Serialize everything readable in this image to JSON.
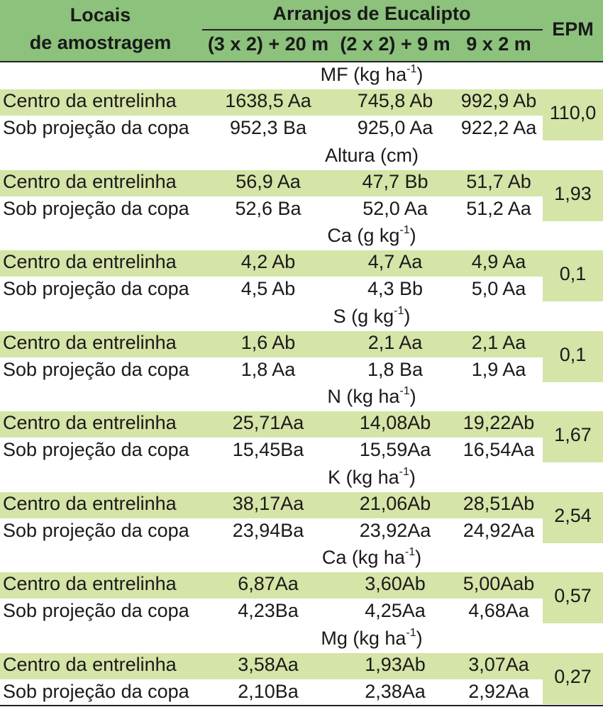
{
  "header": {
    "locais_line1": "Locais",
    "locais_line2": "de amostragem",
    "arranjos": "Arranjos de Eucalipto",
    "col1": "(3 x 2) + 20 m",
    "col2": "(2 x 2) + 9 m",
    "col3": "9 x 2 m",
    "epm": "EPM"
  },
  "sections": [
    {
      "label": "MF (kg ha",
      "unit_sup": "-1",
      "label_end": ")",
      "epm": "110,0",
      "rows": [
        {
          "local": "Centro da entrelinha",
          "v1": "1638,5 Aa",
          "v2": "745,8 Ab",
          "v3": "992,9 Ab"
        },
        {
          "local": "Sob projeção da copa",
          "v1": "952,3 Ba",
          "v2": "925,0 Aa",
          "v3": "922,2 Aa"
        }
      ]
    },
    {
      "label": "Altura (cm)",
      "unit_sup": "",
      "label_end": "",
      "epm": "1,93",
      "rows": [
        {
          "local": "Centro da entrelinha",
          "v1": "56,9 Aa",
          "v2": "47,7 Bb",
          "v3": "51,7 Ab"
        },
        {
          "local": "Sob projeção da copa",
          "v1": "52,6 Ba",
          "v2": "52,0 Aa",
          "v3": "51,2 Aa"
        }
      ]
    },
    {
      "label": "Ca (g kg",
      "unit_sup": "-1",
      "label_end": ")",
      "epm": "0,1",
      "rows": [
        {
          "local": "Centro da entrelinha",
          "v1": "4,2 Ab",
          "v2": "4,7 Aa",
          "v3": "4,9 Aa"
        },
        {
          "local": "Sob projeção da copa",
          "v1": "4,5 Ab",
          "v2": "4,3 Bb",
          "v3": "5,0 Aa"
        }
      ]
    },
    {
      "label": "S (g kg",
      "unit_sup": "-1",
      "label_end": ")",
      "epm": "0,1",
      "rows": [
        {
          "local": "Centro da entrelinha",
          "v1": "1,6 Ab",
          "v2": "2,1 Aa",
          "v3": "2,1 Aa"
        },
        {
          "local": "Sob projeção da copa",
          "v1": "1,8 Aa",
          "v2": "1,8 Ba",
          "v3": "1,9 Aa"
        }
      ]
    },
    {
      "label": "N (kg ha",
      "unit_sup": "-1",
      "label_end": ")",
      "epm": "1,67",
      "rows": [
        {
          "local": "Centro da entrelinha",
          "v1": "25,71Aa",
          "v2": "14,08Ab",
          "v3": "19,22Ab"
        },
        {
          "local": "Sob projeção da copa",
          "v1": "15,45Ba",
          "v2": "15,59Aa",
          "v3": "16,54Aa"
        }
      ]
    },
    {
      "label": "K (kg ha",
      "unit_sup": "-1",
      "label_end": ")",
      "epm": "2,54",
      "rows": [
        {
          "local": "Centro da entrelinha",
          "v1": "38,17Aa",
          "v2": "21,06Ab",
          "v3": "28,51Ab"
        },
        {
          "local": "Sob projeção da copa",
          "v1": "23,94Ba",
          "v2": "23,92Aa",
          "v3": "24,92Aa"
        }
      ]
    },
    {
      "label": "Ca (kg ha",
      "unit_sup": "-1",
      "label_end": ")",
      "epm": "0,57",
      "rows": [
        {
          "local": "Centro da entrelinha",
          "v1": "6,87Aa",
          "v2": "3,60Ab",
          "v3": "5,00Aab"
        },
        {
          "local": "Sob projeção da copa",
          "v1": "4,23Ba",
          "v2": "4,25Aa",
          "v3": "4,68Aa"
        }
      ]
    },
    {
      "label": "Mg (kg ha",
      "unit_sup": "-1",
      "label_end": ")",
      "epm": "0,27",
      "rows": [
        {
          "local": "Centro da entrelinha",
          "v1": "3,58Aa",
          "v2": "1,93Ab",
          "v3": "3,07Aa"
        },
        {
          "local": "Sob projeção da copa",
          "v1": "2,10Ba",
          "v2": "2,38Aa",
          "v3": "2,92Aa"
        }
      ]
    }
  ]
}
